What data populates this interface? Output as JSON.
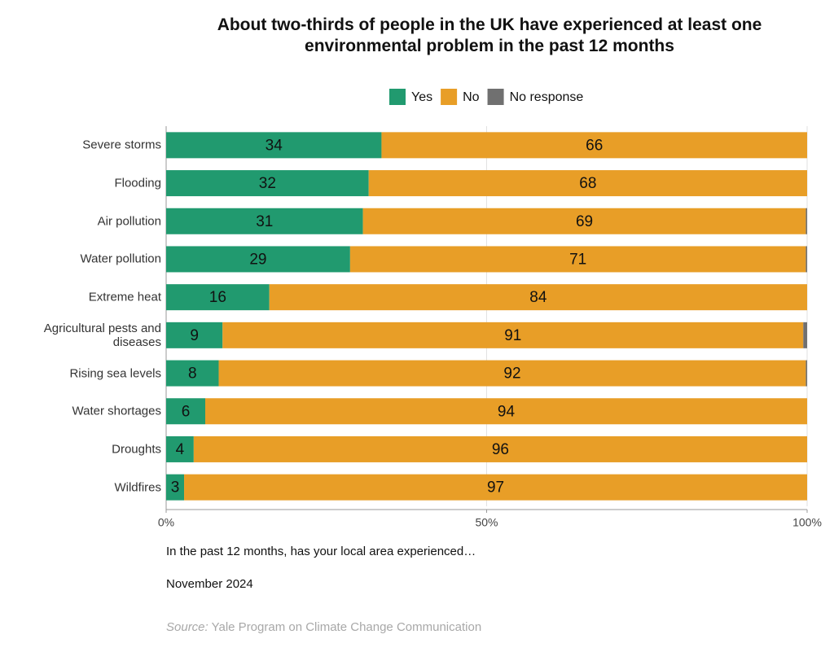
{
  "chart_data": {
    "type": "stacked-bar-horizontal",
    "title": "About two-thirds of people in the UK have experienced at least one environmental problem in the past 12 months",
    "categories": [
      "Severe storms",
      "Flooding",
      "Air pollution",
      "Water pollution",
      "Extreme heat",
      "Agricultural pests and diseases",
      "Rising sea levels",
      "Water shortages",
      "Droughts",
      "Wildfires"
    ],
    "series": [
      {
        "name": "Yes",
        "color": "#219a6f",
        "values": [
          33.6,
          31.6,
          30.7,
          28.7,
          16.1,
          8.8,
          8.2,
          6.1,
          4.3,
          2.8
        ],
        "value_labels": [
          "34",
          "32",
          "31",
          "29",
          "16",
          "9",
          "8",
          "6",
          "4",
          "3"
        ]
      },
      {
        "name": "No",
        "color": "#e89e27",
        "values": [
          66.4,
          68.4,
          69.1,
          71.1,
          83.9,
          90.6,
          91.6,
          93.9,
          95.7,
          97.2
        ],
        "value_labels": [
          "66",
          "68",
          "69",
          "71",
          "84",
          "91",
          "92",
          "94",
          "96",
          "97"
        ]
      },
      {
        "name": "No response",
        "color": "#707070",
        "values": [
          0,
          0,
          0.2,
          0.2,
          0,
          0.6,
          0.2,
          0,
          0,
          0
        ]
      }
    ],
    "xlim": [
      0,
      100
    ],
    "xticks": [
      {
        "value": 0,
        "label": "0%"
      },
      {
        "value": 50,
        "label": "50%"
      },
      {
        "value": 100,
        "label": "100%"
      }
    ],
    "grid": true,
    "legend": "top",
    "question": "In the past 12 months, has your local area experienced…",
    "date": "November 2024",
    "source_label": "Source:",
    "source": "Yale Program on Climate Change Communication"
  }
}
